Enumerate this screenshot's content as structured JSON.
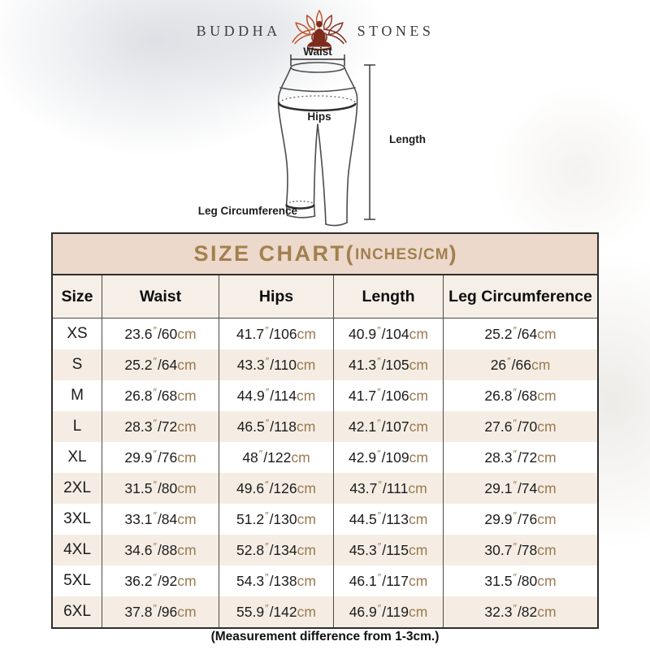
{
  "logo": {
    "word_left": "BUDDHA",
    "word_right": "STONES",
    "icon": "lotus-meditation-icon",
    "text_color": "#3d3b3a",
    "lotus_color_light": "#c05a2e",
    "lotus_color_dark": "#7e2c1e"
  },
  "diagram": {
    "waist_label": "Waist",
    "hips_label": "Hips",
    "length_label": "Length",
    "leg_label": "Leg Circumference",
    "stroke_color": "#4c4c4c"
  },
  "size_chart": {
    "title_main": "SIZE CHART(",
    "title_unit": "INCHES/CM",
    "title_close": ")",
    "unit_inch_mark": "″",
    "unit_cm": "cm",
    "columns": [
      "Size",
      "Waist",
      "Hips",
      "Length",
      "Leg Circumference"
    ],
    "rows": [
      {
        "size": "XS",
        "waist": [
          "23.6",
          "60"
        ],
        "hips": [
          "41.7",
          "106"
        ],
        "length": [
          "40.9",
          "104"
        ],
        "leg": [
          "25.2",
          "64"
        ]
      },
      {
        "size": "S",
        "waist": [
          "25.2",
          "64"
        ],
        "hips": [
          "43.3",
          "110"
        ],
        "length": [
          "41.3",
          "105"
        ],
        "leg": [
          "26",
          "66"
        ]
      },
      {
        "size": "M",
        "waist": [
          "26.8",
          "68"
        ],
        "hips": [
          "44.9",
          "114"
        ],
        "length": [
          "41.7",
          "106"
        ],
        "leg": [
          "26.8",
          "68"
        ]
      },
      {
        "size": "L",
        "waist": [
          "28.3",
          "72"
        ],
        "hips": [
          "46.5",
          "118"
        ],
        "length": [
          "42.1",
          "107"
        ],
        "leg": [
          "27.6",
          "70"
        ]
      },
      {
        "size": "XL",
        "waist": [
          "29.9",
          "76"
        ],
        "hips": [
          "48",
          "122"
        ],
        "length": [
          "42.9",
          "109"
        ],
        "leg": [
          "28.3",
          "72"
        ]
      },
      {
        "size": "2XL",
        "waist": [
          "31.5",
          "80"
        ],
        "hips": [
          "49.6",
          "126"
        ],
        "length": [
          "43.7",
          "111"
        ],
        "leg": [
          "29.1",
          "74"
        ]
      },
      {
        "size": "3XL",
        "waist": [
          "33.1",
          "84"
        ],
        "hips": [
          "51.2",
          "130"
        ],
        "length": [
          "44.5",
          "113"
        ],
        "leg": [
          "29.9",
          "76"
        ]
      },
      {
        "size": "4XL",
        "waist": [
          "34.6",
          "88"
        ],
        "hips": [
          "52.8",
          "134"
        ],
        "length": [
          "45.3",
          "115"
        ],
        "leg": [
          "30.7",
          "78"
        ]
      },
      {
        "size": "5XL",
        "waist": [
          "36.2",
          "92"
        ],
        "hips": [
          "54.3",
          "138"
        ],
        "length": [
          "46.1",
          "117"
        ],
        "leg": [
          "31.5",
          "80"
        ]
      },
      {
        "size": "6XL",
        "waist": [
          "37.8",
          "96"
        ],
        "hips": [
          "55.9",
          "142"
        ],
        "length": [
          "46.9",
          "119"
        ],
        "leg": [
          "32.3",
          "82"
        ]
      }
    ],
    "colors": {
      "title_text": "#a2804e",
      "title_band_bg": "#ecd9cb",
      "header_row_bg": "#f6efe8",
      "row_even_bg": "#f5ede3",
      "row_odd_bg": "#ffffff",
      "accent_unit": "#9a7a52",
      "border_dark": "#2e2d2c",
      "grid_line": "#4a4a4a"
    }
  },
  "footer": {
    "note": "(Measurement difference from 1-3cm.)"
  }
}
